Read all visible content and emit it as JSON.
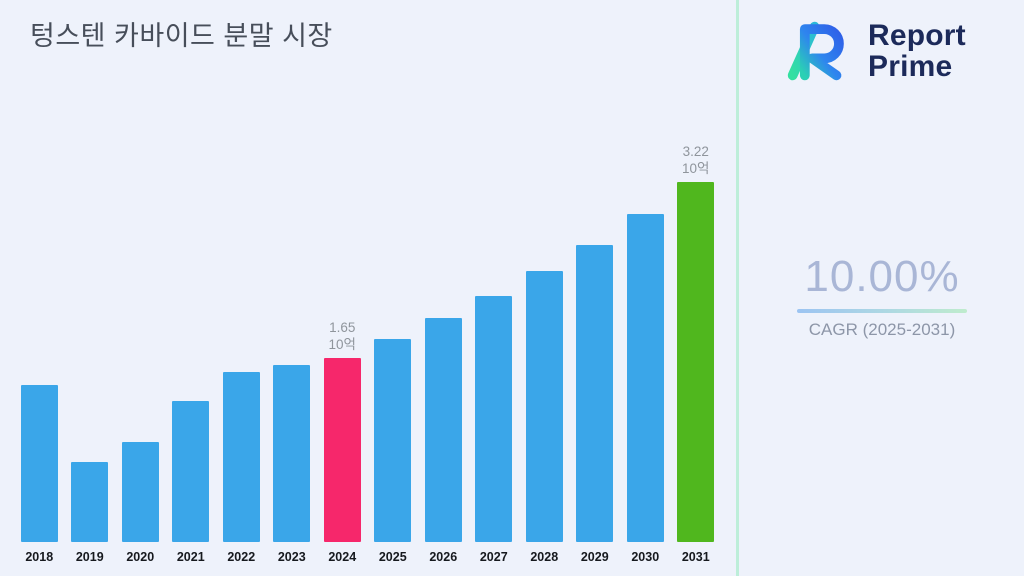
{
  "page": {
    "background": "#eef2fb"
  },
  "header": {
    "title": "텅스텐 카바이드 분말 시장"
  },
  "logo": {
    "line1": "Report",
    "line2": "Prime"
  },
  "stats": {
    "cagr_value": "10.00%",
    "cagr_label": "CAGR (2025-2031)"
  },
  "chart_data": {
    "type": "bar",
    "title": "텅스텐 카바이드 분말 시장",
    "unit": "10억",
    "categories": [
      "2018",
      "2019",
      "2020",
      "2021",
      "2022",
      "2023",
      "2024",
      "2025",
      "2026",
      "2027",
      "2028",
      "2029",
      "2030",
      "2031"
    ],
    "values": [
      1.4,
      0.72,
      0.89,
      1.26,
      1.52,
      1.58,
      1.65,
      1.82,
      2.0,
      2.2,
      2.42,
      2.66,
      2.93,
      3.22
    ],
    "ylim": [
      0,
      3.22
    ],
    "grid": false,
    "legend": "none",
    "bar_color_default": "#3aa6e9",
    "highlights": {
      "2024": "#f6276b",
      "2031": "#50b71e"
    },
    "annotations": [
      {
        "category": "2024",
        "lines": [
          "1.65",
          "10억"
        ]
      },
      {
        "category": "2031",
        "lines": [
          "3.22",
          "10억"
        ]
      }
    ]
  }
}
